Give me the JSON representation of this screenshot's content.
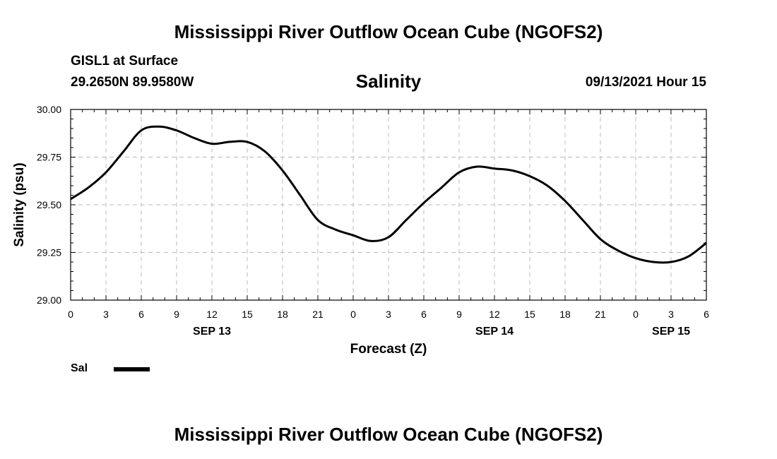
{
  "header": {
    "title": "Mississippi River Outflow Ocean Cube (NGOFS2)",
    "station": "GISL1 at Surface",
    "coords": "29.2650N  89.9580W",
    "variable": "Salinity",
    "timestamp": "09/13/2021 Hour 15"
  },
  "footer": {
    "title": "Mississippi River Outflow Ocean Cube (NGOFS2)"
  },
  "chart_data": {
    "type": "line",
    "title": "Salinity",
    "ylabel": "Salinity (psu)",
    "xlabel": "Forecast (Z)",
    "xlim": [
      0,
      54
    ],
    "ylim": [
      29.0,
      30.0
    ],
    "yticks": [
      29.0,
      29.25,
      29.5,
      29.75,
      30.0
    ],
    "ytick_labels": [
      "29.00",
      "29.25",
      "29.50",
      "29.75",
      "30.00"
    ],
    "xticks": [
      0,
      3,
      6,
      9,
      12,
      15,
      18,
      21,
      24,
      27,
      30,
      33,
      36,
      39,
      42,
      45,
      48,
      51,
      54
    ],
    "xtick_labels": [
      "0",
      "3",
      "6",
      "9",
      "12",
      "15",
      "18",
      "21",
      "0",
      "3",
      "6",
      "9",
      "12",
      "15",
      "18",
      "21",
      "0",
      "3",
      "6"
    ],
    "date_labels": [
      {
        "x": 12,
        "label": "SEP 13"
      },
      {
        "x": 36,
        "label": "SEP 14"
      },
      {
        "x": 51,
        "label": "SEP 15"
      }
    ],
    "grid": true,
    "legend": [
      {
        "name": "Sal",
        "color": "#000000"
      }
    ],
    "series": [
      {
        "name": "Sal",
        "color": "#000000",
        "x": [
          0,
          1.5,
          3,
          4.5,
          6,
          7.5,
          9,
          10.5,
          12,
          13.5,
          15,
          16.5,
          18,
          19.5,
          21,
          22.5,
          24,
          25.5,
          27,
          28.5,
          30,
          31.5,
          33,
          34.5,
          36,
          37.5,
          39,
          40.5,
          42,
          43.5,
          45,
          46.5,
          48,
          49.5,
          51,
          52.5,
          54
        ],
        "values": [
          29.53,
          29.59,
          29.67,
          29.78,
          29.89,
          29.91,
          29.89,
          29.85,
          29.82,
          29.83,
          29.83,
          29.78,
          29.68,
          29.55,
          29.42,
          29.37,
          29.34,
          29.31,
          29.33,
          29.42,
          29.51,
          29.59,
          29.67,
          29.7,
          29.69,
          29.68,
          29.65,
          29.6,
          29.52,
          29.42,
          29.32,
          29.26,
          29.22,
          29.2,
          29.2,
          29.23,
          29.3
        ]
      }
    ]
  }
}
